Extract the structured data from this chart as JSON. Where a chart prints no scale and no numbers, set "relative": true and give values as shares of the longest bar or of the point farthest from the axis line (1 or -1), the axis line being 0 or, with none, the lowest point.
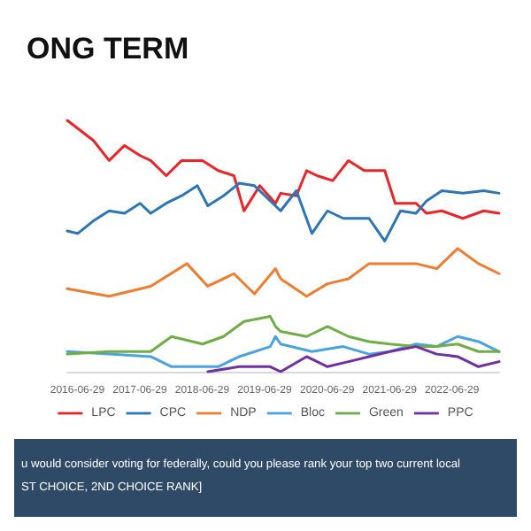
{
  "chart_data": {
    "type": "line",
    "title": "ONG TERM",
    "relative": true,
    "xlim": [
      "2016-05",
      "2023-04"
    ],
    "xticks": [
      "2016-06-29",
      "2017-06-29",
      "2018-06-29",
      "2019-06-29",
      "2020-06-29",
      "2021-06-29",
      "2022-06-29"
    ],
    "legend": "bottom",
    "grid": false,
    "marker": "none",
    "line_style": "solid",
    "annotations": [
      "u would consider voting for federally, could you please rank your top two current local",
      "ST CHOICE, 2ND CHOICE RANK]"
    ],
    "series": [
      {
        "name": "LPC",
        "color": "#e8262a",
        "x": [
          "2016-05",
          "2016-10",
          "2017-01",
          "2017-04",
          "2017-07",
          "2017-09",
          "2017-12",
          "2018-03",
          "2018-07",
          "2018-10",
          "2019-01",
          "2019-03",
          "2019-06",
          "2019-09",
          "2019-10",
          "2020-01",
          "2020-03",
          "2020-05",
          "2020-08",
          "2020-11",
          "2021-02",
          "2021-06",
          "2021-08",
          "2021-12",
          "2022-02",
          "2022-05",
          "2022-09",
          "2023-01",
          "2023-04"
        ],
        "values": [
          1.0,
          0.92,
          0.84,
          0.9,
          0.86,
          0.84,
          0.78,
          0.84,
          0.84,
          0.8,
          0.78,
          0.64,
          0.74,
          0.67,
          0.71,
          0.7,
          0.8,
          0.78,
          0.76,
          0.84,
          0.8,
          0.8,
          0.67,
          0.67,
          0.63,
          0.64,
          0.61,
          0.64,
          0.63
        ]
      },
      {
        "name": "CPC",
        "color": "#2e75b6",
        "x": [
          "2016-05",
          "2016-07",
          "2016-10",
          "2017-01",
          "2017-04",
          "2017-07",
          "2017-09",
          "2017-12",
          "2018-03",
          "2018-06",
          "2018-08",
          "2018-11",
          "2019-02",
          "2019-05",
          "2019-08",
          "2019-10",
          "2020-01",
          "2020-04",
          "2020-07",
          "2020-10",
          "2021-01",
          "2021-03",
          "2021-06",
          "2021-09",
          "2021-12",
          "2022-02",
          "2022-05",
          "2022-09",
          "2023-01",
          "2023-04"
        ],
        "values": [
          0.56,
          0.55,
          0.6,
          0.64,
          0.63,
          0.67,
          0.63,
          0.67,
          0.7,
          0.74,
          0.66,
          0.7,
          0.75,
          0.74,
          0.68,
          0.64,
          0.72,
          0.55,
          0.64,
          0.61,
          0.61,
          0.61,
          0.52,
          0.64,
          0.63,
          0.68,
          0.72,
          0.71,
          0.72,
          0.71
        ]
      },
      {
        "name": "NDP",
        "color": "#ed7d31",
        "x": [
          "2016-05",
          "2017-01",
          "2017-09",
          "2018-04",
          "2018-08",
          "2019-01",
          "2019-05",
          "2019-09",
          "2019-10",
          "2020-03",
          "2020-07",
          "2020-11",
          "2021-03",
          "2021-07",
          "2021-12",
          "2022-04",
          "2022-08",
          "2022-12",
          "2023-04"
        ],
        "values": [
          0.33,
          0.3,
          0.34,
          0.43,
          0.34,
          0.39,
          0.31,
          0.41,
          0.37,
          0.3,
          0.35,
          0.37,
          0.43,
          0.43,
          0.43,
          0.41,
          0.49,
          0.43,
          0.39
        ]
      },
      {
        "name": "Bloc",
        "color": "#4aa3df",
        "x": [
          "2016-05",
          "2017-01",
          "2017-09",
          "2018-01",
          "2018-06",
          "2018-10",
          "2019-02",
          "2019-08",
          "2019-09",
          "2019-10",
          "2020-04",
          "2020-10",
          "2021-03",
          "2021-07",
          "2021-12",
          "2022-04",
          "2022-08",
          "2022-12",
          "2023-04"
        ],
        "values": [
          0.08,
          0.07,
          0.06,
          0.02,
          0.02,
          0.02,
          0.06,
          0.1,
          0.14,
          0.11,
          0.08,
          0.1,
          0.07,
          0.08,
          0.11,
          0.1,
          0.14,
          0.12,
          0.08
        ]
      },
      {
        "name": "Green",
        "color": "#70ad47",
        "x": [
          "2016-05",
          "2017-01",
          "2017-09",
          "2018-01",
          "2018-07",
          "2018-11",
          "2019-03",
          "2019-08",
          "2019-09",
          "2019-10",
          "2020-03",
          "2020-07",
          "2020-11",
          "2021-03",
          "2021-07",
          "2021-12",
          "2022-04",
          "2022-08",
          "2022-12",
          "2023-04"
        ],
        "values": [
          0.07,
          0.08,
          0.08,
          0.14,
          0.11,
          0.14,
          0.2,
          0.22,
          0.18,
          0.16,
          0.14,
          0.18,
          0.14,
          0.12,
          0.11,
          0.1,
          0.1,
          0.11,
          0.08,
          0.08
        ]
      },
      {
        "name": "PPC",
        "color": "#7030a0",
        "x": [
          "2018-08",
          "2019-02",
          "2019-08",
          "2019-10",
          "2020-03",
          "2020-07",
          "2020-11",
          "2021-03",
          "2021-07",
          "2021-12",
          "2022-04",
          "2022-08",
          "2022-12",
          "2023-04"
        ],
        "values": [
          0.0,
          0.02,
          0.02,
          0.0,
          0.06,
          0.02,
          0.04,
          0.06,
          0.08,
          0.1,
          0.07,
          0.06,
          0.02,
          0.04
        ]
      }
    ]
  }
}
